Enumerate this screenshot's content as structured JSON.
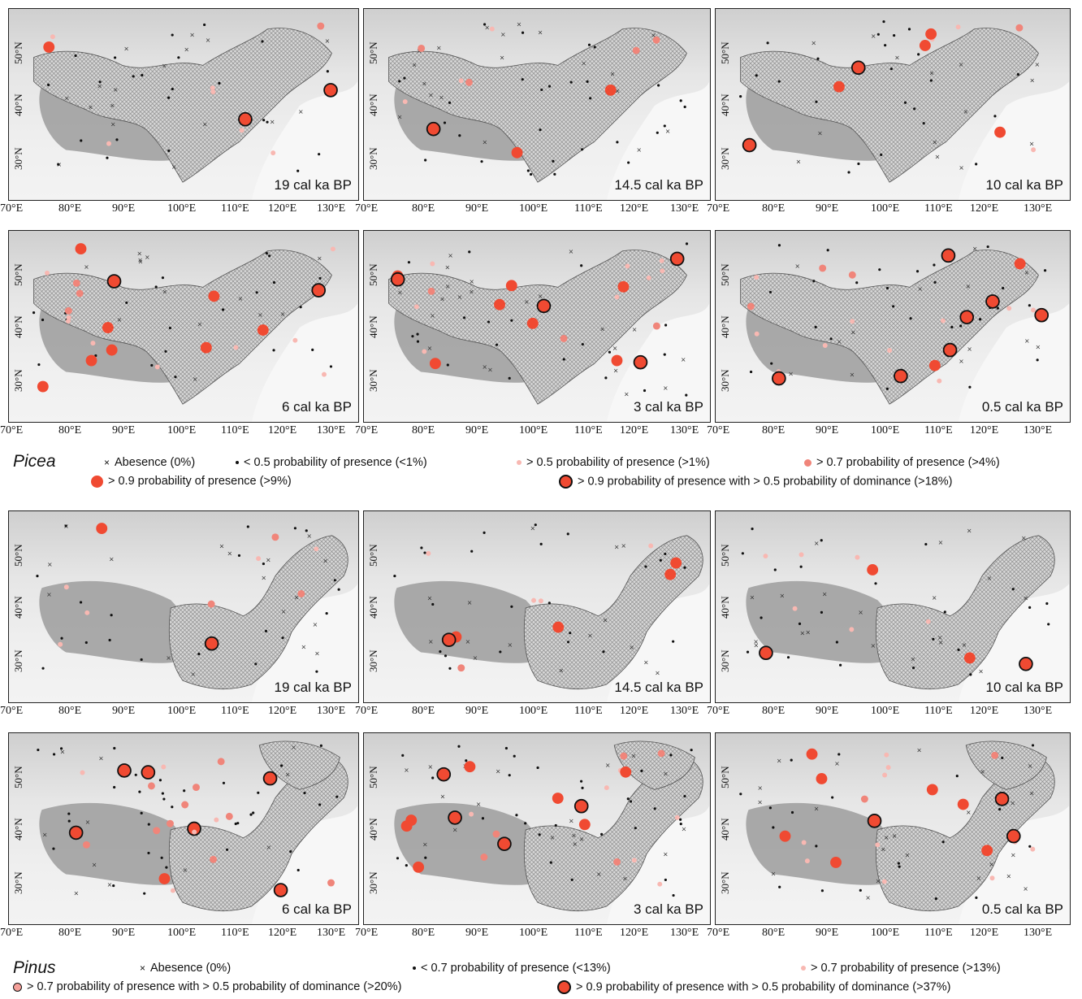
{
  "picea": {
    "title": "Picea",
    "periods": [
      "19 cal ka BP",
      "14.5 cal ka BP",
      "10 cal ka BP",
      "6 cal ka BP",
      "3 cal ka BP",
      "0.5 cal ka BP"
    ],
    "legend": {
      "absence": "Abesence (0%)",
      "low": "< 0.5 probability of presence (<1%)",
      "p05": "> 0.5 probability of presence (>1%)",
      "p07": "> 0.7 probability of presence (>4%)",
      "p09": "> 0.9 probability of presence (>9%)",
      "dom": "> 0.9 probability of presence with > 0.5 probability of dominance (>18%)"
    }
  },
  "pinus": {
    "title": "Pinus",
    "periods": [
      "19 cal ka BP",
      "14.5 cal ka BP",
      "10 cal ka BP",
      "6 cal ka BP",
      "3 cal ka BP",
      "0.5 cal ka BP"
    ],
    "legend": {
      "absence": "Abesence (0%)",
      "low": "< 0.7 probability of presence (<13%)",
      "p07": "> 0.7 probability of presence (>13%)",
      "dom07": "> 0.7 probability of presence with > 0.5 probability of dominance (>20%)",
      "dom09": "> 0.9 probability of presence with > 0.5 probability of dominance (>37%)"
    }
  },
  "axes": {
    "lat_labels": [
      "50°N",
      "40°N",
      "30°N"
    ],
    "lon_labels": [
      "70°E",
      "80°E",
      "90°E",
      "100°E",
      "110°E",
      "120°E",
      "130°E"
    ]
  },
  "colors": {
    "marker": "#f04a32",
    "marker_light": "#f5a09a",
    "marker_pale": "#f8c4c0",
    "outline": "#111111"
  }
}
